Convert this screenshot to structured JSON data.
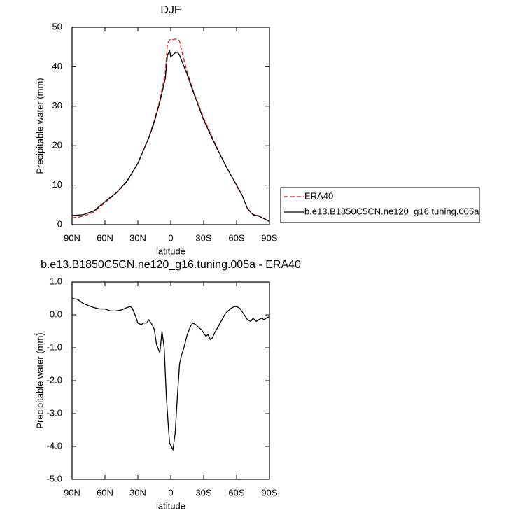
{
  "chart_data": [
    {
      "type": "line",
      "title": "DJF",
      "xlabel": "latitude",
      "ylabel": "Precipitable water (mm)",
      "x": [
        90,
        80,
        70,
        60,
        50,
        40,
        30,
        20,
        15,
        10,
        5,
        3,
        1,
        0,
        -2,
        -4,
        -6,
        -8,
        -10,
        -15,
        -20,
        -30,
        -40,
        -50,
        -60,
        -65,
        -70,
        -75,
        -80,
        -85,
        -90
      ],
      "series": [
        {
          "name": "ERA40",
          "color": "#e31a1c",
          "dash": true,
          "values": [
            1.7,
            2.1,
            3.2,
            5.6,
            7.9,
            10.8,
            15.6,
            22.2,
            26.4,
            31.5,
            38.5,
            46,
            46.8,
            46.8,
            46.9,
            47,
            47,
            46.5,
            44,
            38.5,
            34.3,
            27,
            20.8,
            15,
            9.8,
            7.4,
            4.1,
            2.6,
            2.3,
            1.6,
            0.8
          ]
        },
        {
          "name": "b.e13.B1850C5CN.ne120_g16.tuning.005a",
          "color": "#000000",
          "dash": false,
          "values": [
            2.3,
            2.5,
            3.5,
            5.8,
            8,
            11,
            15.5,
            22,
            26,
            31,
            37,
            43,
            44,
            42.5,
            43,
            43.5,
            43.7,
            43,
            41.5,
            38,
            34,
            26.5,
            20.5,
            15,
            10,
            7.5,
            4,
            2.5,
            2.2,
            1.5,
            0.8
          ]
        }
      ],
      "xlim": [
        90,
        -90
      ],
      "xticks": [
        {
          "value": 90,
          "label": "90N"
        },
        {
          "value": 60,
          "label": "60N"
        },
        {
          "value": 30,
          "label": "30N"
        },
        0,
        {
          "value": -30,
          "label": "30S"
        },
        {
          "value": -60,
          "label": "60S"
        },
        {
          "value": -90,
          "label": "90S"
        }
      ],
      "ylim": [
        0,
        50
      ],
      "yticks": [
        0,
        10,
        20,
        30,
        40,
        50
      ]
    },
    {
      "type": "line",
      "title": "b.e13.B1850C5CN.ne120_g16.tuning.005a - ERA40",
      "xlabel": "latitude",
      "ylabel": "Precipitable water (mm)",
      "x": [
        90,
        85,
        80,
        75,
        70,
        65,
        60,
        55,
        50,
        45,
        40,
        37,
        35,
        32,
        30,
        27,
        25,
        22,
        20,
        17,
        15,
        13,
        10,
        8,
        6,
        4,
        2,
        1,
        -2,
        -4,
        -6,
        -8,
        -10,
        -12,
        -15,
        -18,
        -20,
        -23,
        -26,
        -28,
        -30,
        -32,
        -34,
        -36,
        -38,
        -40,
        -45,
        -50,
        -55,
        -58,
        -60,
        -63,
        -66,
        -70,
        -73,
        -75,
        -78,
        -80,
        -83,
        -85,
        -87,
        -90
      ],
      "series": [
        {
          "color": "#000000",
          "dash": false,
          "values": [
            0.5,
            0.47,
            0.35,
            0.28,
            0.22,
            0.18,
            0.18,
            0.12,
            0.12,
            0.15,
            0.22,
            0.25,
            0.2,
            -0.05,
            -0.25,
            -0.3,
            -0.25,
            -0.25,
            -0.15,
            -0.3,
            -0.45,
            -0.9,
            -1.15,
            -0.5,
            -1.0,
            -2.5,
            -3.5,
            -3.9,
            -4.1,
            -3.6,
            -2.5,
            -1.5,
            -1.2,
            -1.0,
            -0.6,
            -0.35,
            -0.25,
            -0.3,
            -0.4,
            -0.45,
            -0.55,
            -0.65,
            -0.6,
            -0.75,
            -0.7,
            -0.55,
            -0.25,
            0.05,
            0.2,
            0.25,
            0.25,
            0.2,
            0.05,
            -0.15,
            -0.2,
            -0.1,
            -0.2,
            -0.15,
            -0.1,
            -0.15,
            -0.1,
            -0.05
          ]
        }
      ],
      "xlim": [
        90,
        -90
      ],
      "xticks": [
        {
          "value": 90,
          "label": "90N"
        },
        {
          "value": 60,
          "label": "60N"
        },
        {
          "value": 30,
          "label": "30N"
        },
        0,
        {
          "value": -30,
          "label": "30S"
        },
        {
          "value": -60,
          "label": "60S"
        },
        {
          "value": -90,
          "label": "90S"
        }
      ],
      "ylim": [
        -5,
        1
      ],
      "yticks": [
        {
          "value": -5,
          "label": "-5.0"
        },
        {
          "value": -4,
          "label": "-4.0"
        },
        {
          "value": -3,
          "label": "-3.0"
        },
        {
          "value": -2,
          "label": "-2.0"
        },
        {
          "value": -1,
          "label": "-1.0"
        },
        {
          "value": 0,
          "label": "0.0"
        },
        {
          "value": 1,
          "label": "1.0"
        }
      ]
    }
  ]
}
